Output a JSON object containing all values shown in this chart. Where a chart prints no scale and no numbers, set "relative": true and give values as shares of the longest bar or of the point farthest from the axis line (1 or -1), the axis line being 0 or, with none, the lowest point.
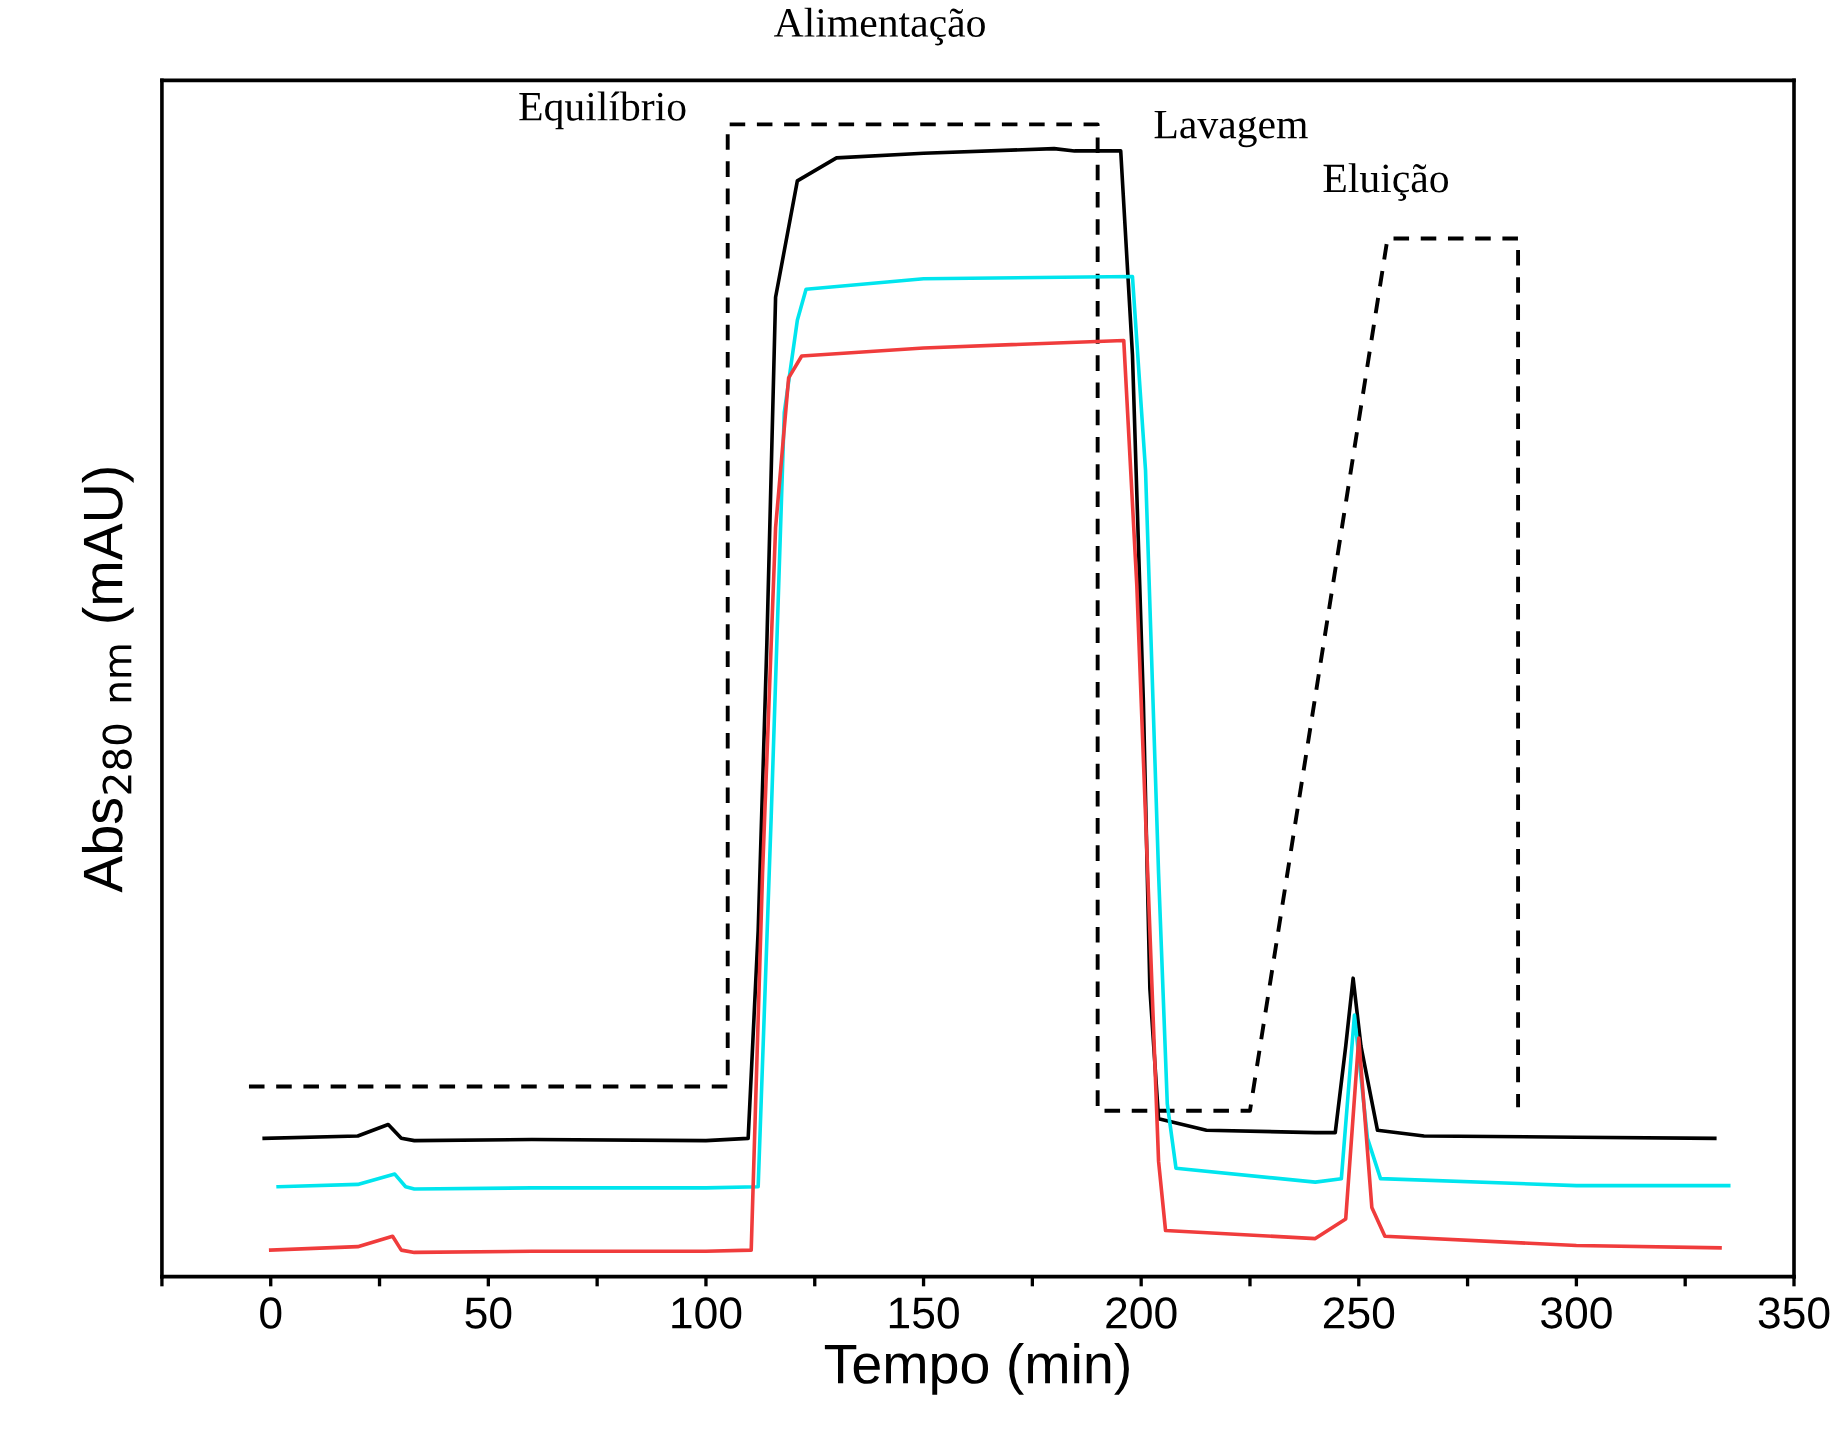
{
  "chart_data": {
    "type": "line",
    "relative": true,
    "xlabel": "Tempo (min)",
    "ylabel": "Abs$_{280 nm}$ (mAU)",
    "xlim": [
      -25,
      350
    ],
    "xticks": [
      {
        "value": -25,
        "label": null
      },
      0,
      {
        "value": 25,
        "label": null
      },
      50,
      {
        "value": 75,
        "label": null
      },
      100,
      {
        "value": 125,
        "label": null
      },
      150,
      {
        "value": 175,
        "label": null
      },
      200,
      {
        "value": 225,
        "label": null
      },
      250,
      {
        "value": 275,
        "label": null
      },
      300,
      {
        "value": 325,
        "label": null
      },
      350
    ],
    "grid": false,
    "legend": false,
    "tick_labels": "x",
    "annotations": [
      "Equilíbrio",
      "Alimentação",
      "Lavagem",
      "Eluição"
    ],
    "series": [
      {
        "color": "#000000",
        "line_style": "dashed",
        "x": [
          -5,
          105,
          105,
          190,
          190,
          225,
          256.6,
          286.6,
          286.6
        ],
        "values": [
          0.165,
          0.165,
          1.0,
          1.0,
          0.144,
          0.144,
          0.901,
          0.901,
          0.147
        ]
      },
      {
        "color": "#000000",
        "line_style": "solid",
        "x": [
          -1.5,
          20,
          27,
          30,
          33,
          60,
          100,
          109.7,
          112,
          114,
          116,
          121,
          130,
          150,
          180,
          184.7,
          195.3,
          198,
          200.5,
          202,
          204,
          215,
          240,
          244.6,
          247,
          248.7,
          250.5,
          254.3,
          265,
          300,
          331.8
        ],
        "values": [
          0.12,
          0.122,
          0.132,
          0.12,
          0.118,
          0.119,
          0.118,
          0.12,
          0.3,
          0.55,
          0.85,
          0.951,
          0.971,
          0.975,
          0.979,
          0.977,
          0.977,
          0.8,
          0.5,
          0.25,
          0.137,
          0.127,
          0.125,
          0.125,
          0.2,
          0.259,
          0.2,
          0.127,
          0.122,
          0.121,
          0.12
        ]
      },
      {
        "color": "#00e5ee",
        "line_style": "solid",
        "x": [
          1.7,
          20,
          28.5,
          31,
          33,
          60,
          100,
          112,
          115,
          118,
          121,
          123,
          150,
          198,
          201,
          204,
          206,
          208,
          240,
          246,
          249,
          252,
          255,
          300,
          335
        ],
        "values": [
          0.078,
          0.08,
          0.089,
          0.078,
          0.076,
          0.077,
          0.077,
          0.078,
          0.4,
          0.75,
          0.83,
          0.857,
          0.866,
          0.868,
          0.7,
          0.35,
          0.15,
          0.094,
          0.082,
          0.085,
          0.227,
          0.12,
          0.085,
          0.079,
          0.079
        ]
      },
      {
        "color": "#f03c3c",
        "line_style": "solid",
        "x": [
          0,
          20,
          28,
          30,
          33,
          60,
          100,
          110.4,
          113,
          116,
          119,
          122,
          150,
          196,
          199,
          202,
          204,
          205.6,
          240,
          247,
          250,
          253,
          256,
          300,
          333
        ],
        "values": [
          0.023,
          0.026,
          0.035,
          0.023,
          0.021,
          0.022,
          0.022,
          0.023,
          0.35,
          0.65,
          0.78,
          0.799,
          0.806,
          0.8125,
          0.6,
          0.3,
          0.1,
          0.04,
          0.033,
          0.05,
          0.207,
          0.06,
          0.035,
          0.027,
          0.025
        ]
      }
    ]
  }
}
